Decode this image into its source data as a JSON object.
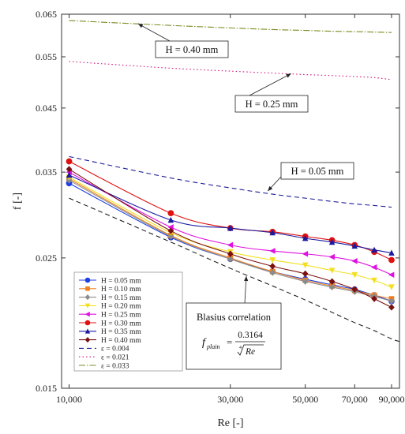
{
  "chart_data": {
    "type": "line",
    "xlabel": "Re [-]",
    "ylabel": "f [-]",
    "x_scale": "log",
    "y_scale": "log",
    "xlim": [
      9500,
      95000
    ],
    "ylim": [
      0.015,
      0.065
    ],
    "x_ticks": [
      10000,
      30000,
      50000,
      70000,
      90000
    ],
    "x_tick_labels": [
      "10,000",
      "30,000",
      "50,000",
      "70,000",
      "90,000"
    ],
    "y_ticks": [
      0.015,
      0.025,
      0.035,
      0.045,
      0.055,
      0.065
    ],
    "y_tick_labels": [
      "0.015",
      "0.025",
      "0.035",
      "0.045",
      "0.055",
      "0.065"
    ],
    "grid": false,
    "legend_position": "bottom-left",
    "series": [
      {
        "name": "H = 0.05 mm",
        "kind": "data",
        "color": "#1f3fe0",
        "marker": "circle",
        "x": [
          10000,
          20000,
          30000,
          40000,
          50000,
          60000,
          70000,
          80000,
          90000
        ],
        "y": [
          0.0335,
          0.0271,
          0.0249,
          0.0237,
          0.023,
          0.0225,
          0.0221,
          0.0216,
          0.0211
        ]
      },
      {
        "name": "H = 0.10 mm",
        "kind": "data",
        "color": "#f08020",
        "marker": "square",
        "x": [
          10000,
          20000,
          30000,
          40000,
          50000,
          60000,
          70000,
          80000,
          90000
        ],
        "y": [
          0.0341,
          0.0273,
          0.025,
          0.0237,
          0.0229,
          0.0224,
          0.022,
          0.0216,
          0.0213
        ]
      },
      {
        "name": "H = 0.15 mm",
        "kind": "data",
        "color": "#8c8c8c",
        "marker": "diamond",
        "x": [
          10000,
          20000,
          30000,
          40000,
          50000,
          60000,
          70000,
          80000,
          90000
        ],
        "y": [
          0.0339,
          0.0272,
          0.0249,
          0.0236,
          0.0228,
          0.0223,
          0.0219,
          0.0215,
          0.0211
        ]
      },
      {
        "name": "H = 0.20 mm",
        "kind": "data",
        "color": "#f2e020",
        "marker": "triangle-down",
        "x": [
          10000,
          20000,
          30000,
          40000,
          50000,
          60000,
          70000,
          80000,
          90000
        ],
        "y": [
          0.0343,
          0.0276,
          0.0256,
          0.0248,
          0.0243,
          0.0238,
          0.0234,
          0.0229,
          0.0223
        ]
      },
      {
        "name": "H = 0.25 mm",
        "kind": "data",
        "color": "#e010e0",
        "marker": "triangle-left",
        "x": [
          10000,
          20000,
          30000,
          40000,
          50000,
          60000,
          70000,
          80000,
          90000
        ],
        "y": [
          0.035,
          0.0282,
          0.0263,
          0.0257,
          0.0254,
          0.0251,
          0.0247,
          0.0241,
          0.0234
        ]
      },
      {
        "name": "H = 0.30 mm",
        "kind": "data",
        "color": "#e01010",
        "marker": "circle",
        "x": [
          10000,
          20000,
          30000,
          40000,
          50000,
          60000,
          70000,
          80000,
          90000
        ],
        "y": [
          0.0365,
          0.0298,
          0.0281,
          0.0277,
          0.0272,
          0.0268,
          0.0263,
          0.0256,
          0.0248
        ]
      },
      {
        "name": "H = 0.35 mm",
        "kind": "data",
        "color": "#1a1aa0",
        "marker": "triangle-up",
        "x": [
          10000,
          20000,
          30000,
          40000,
          50000,
          60000,
          70000,
          80000,
          90000
        ],
        "y": [
          0.0346,
          0.029,
          0.0281,
          0.0276,
          0.027,
          0.0266,
          0.0262,
          0.0258,
          0.0255
        ]
      },
      {
        "name": "H = 0.40 mm",
        "kind": "data",
        "color": "#7a1010",
        "marker": "diamond",
        "x": [
          10000,
          20000,
          30000,
          40000,
          50000,
          60000,
          70000,
          80000,
          90000
        ],
        "y": [
          0.0354,
          0.0278,
          0.0254,
          0.0242,
          0.0235,
          0.0228,
          0.0221,
          0.0213,
          0.0206
        ]
      },
      {
        "name": "ε = 0.004",
        "kind": "model",
        "color": "#1a1a99",
        "dash": "6,4",
        "x": [
          10000,
          20000,
          30000,
          40000,
          50000,
          60000,
          70000,
          80000,
          90000
        ],
        "y": [
          0.0372,
          0.0342,
          0.0329,
          0.0321,
          0.0316,
          0.0312,
          0.0309,
          0.0307,
          0.0305
        ]
      },
      {
        "name": "ε = 0.021",
        "kind": "model",
        "color": "#d0107a",
        "dash": "1.5,3",
        "x": [
          10000,
          20000,
          30000,
          40000,
          50000,
          60000,
          70000,
          80000,
          90000
        ],
        "y": [
          0.054,
          0.0526,
          0.052,
          0.0516,
          0.0513,
          0.0511,
          0.0509,
          0.0507,
          0.0503
        ]
      },
      {
        "name": "ε = 0.033",
        "kind": "model",
        "color": "#7f8a20",
        "dash": "8,2,1.5,2",
        "x": [
          10000,
          20000,
          30000,
          40000,
          50000,
          60000,
          70000,
          80000,
          90000
        ],
        "y": [
          0.0634,
          0.0622,
          0.0616,
          0.0612,
          0.061,
          0.0608,
          0.0607,
          0.0606,
          0.0605
        ]
      },
      {
        "name": "",
        "kind": "blasius",
        "color": "#111111",
        "dash": "6,4",
        "x": [
          10000,
          20000,
          30000,
          40000,
          50000,
          60000,
          70000,
          80000,
          90000
        ],
        "y": [
          0.0316,
          0.0266,
          0.024,
          0.0224,
          0.0212,
          0.0202,
          0.0194,
          0.0188,
          0.0182
        ]
      }
    ],
    "annotations": [
      {
        "text": "H = 0.40 mm",
        "x": 16000,
        "y": 0.063
      },
      {
        "text": "H = 0.25 mm",
        "x": 50000,
        "y": 0.0518
      },
      {
        "text": "H = 0.05 mm",
        "x": 40000,
        "y": 0.0325
      },
      {
        "text": "Blasius correlation",
        "x": 39000,
        "y": 0.0232
      }
    ],
    "formula": {
      "lhs": "f",
      "lhs_sub": "plain",
      "numerator": "0.3164",
      "root_index": "4",
      "radicand": "Re"
    }
  }
}
